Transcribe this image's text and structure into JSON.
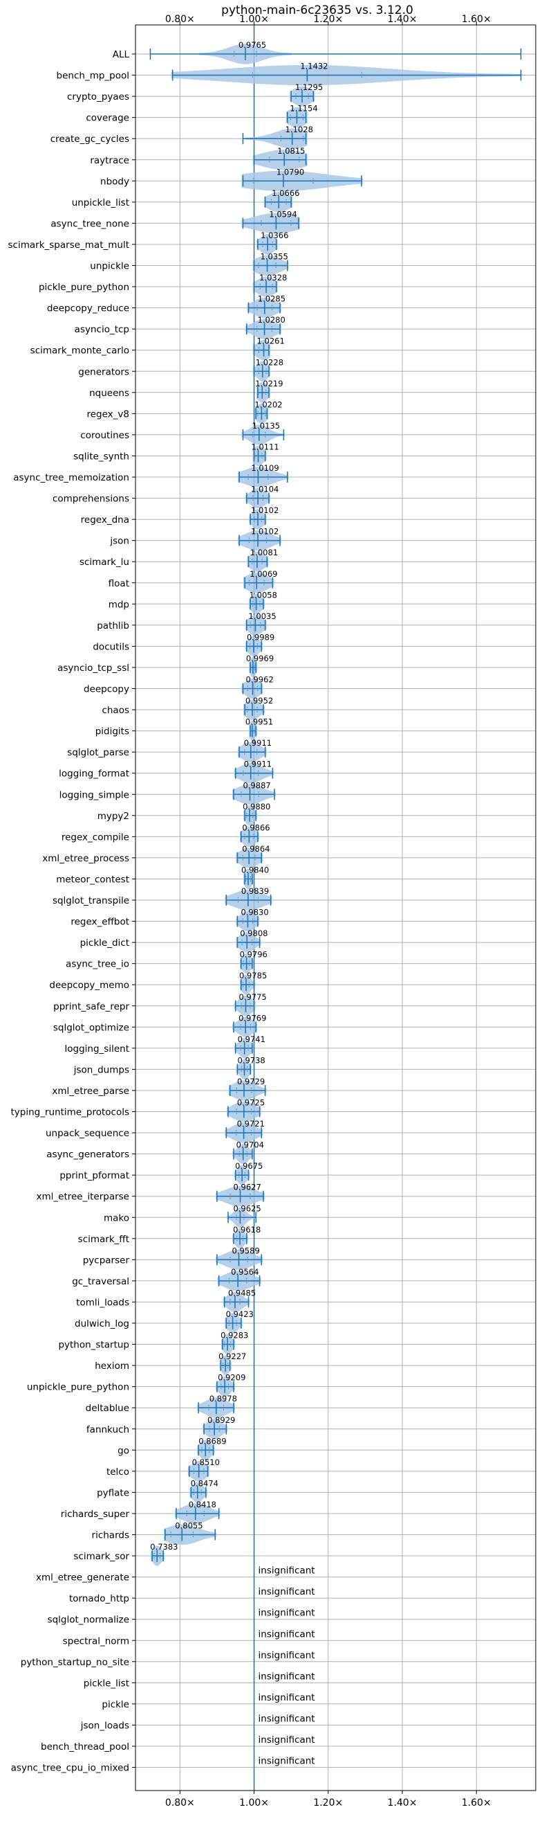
{
  "chart_data": {
    "type": "violin",
    "title": "python-main-6c23635 vs. 3.12.0",
    "xlabel": "",
    "ylabel": "",
    "xlim": [
      0.68,
      1.76
    ],
    "xticks": [
      0.8,
      1.0,
      1.2,
      1.4,
      1.6
    ],
    "xtick_labels": [
      "0.80×",
      "1.00×",
      "1.20×",
      "1.40×",
      "1.60×"
    ],
    "reference_line": 1.0,
    "grid": true,
    "colors": {
      "violin": "#a9c8e6",
      "line": "#1f77b4",
      "grid": "#b0b0b0"
    },
    "benchmarks": [
      {
        "name": "ALL",
        "label": "0.9765",
        "mean": 0.9765,
        "min": 0.72,
        "max": 1.72,
        "spread": 0.045
      },
      {
        "name": "bench_mp_pool",
        "label": "1.1432",
        "mean": 1.1432,
        "min": 0.78,
        "max": 1.72,
        "spread": 0.22
      },
      {
        "name": "crypto_pyaes",
        "label": "1.1295",
        "mean": 1.1295,
        "min": 1.1,
        "max": 1.16,
        "spread": 0.025
      },
      {
        "name": "coverage",
        "label": "1.1154",
        "mean": 1.1154,
        "min": 1.09,
        "max": 1.14,
        "spread": 0.025
      },
      {
        "name": "create_gc_cycles",
        "label": "1.1028",
        "mean": 1.1028,
        "min": 0.97,
        "max": 1.14,
        "spread": 0.045
      },
      {
        "name": "raytrace",
        "label": "1.0815",
        "mean": 1.0815,
        "min": 1.0,
        "max": 1.14,
        "spread": 0.06
      },
      {
        "name": "nbody",
        "label": "1.0790",
        "mean": 1.079,
        "min": 0.97,
        "max": 1.29,
        "spread": 0.12
      },
      {
        "name": "unpickle_list",
        "label": "1.0666",
        "mean": 1.0666,
        "min": 1.03,
        "max": 1.1,
        "spread": 0.03
      },
      {
        "name": "async_tree_none",
        "label": "1.0594",
        "mean": 1.0594,
        "min": 0.97,
        "max": 1.12,
        "spread": 0.06
      },
      {
        "name": "scimark_sparse_mat_mult",
        "label": "1.0366",
        "mean": 1.0366,
        "min": 1.01,
        "max": 1.06,
        "spread": 0.02
      },
      {
        "name": "unpickle",
        "label": "1.0355",
        "mean": 1.0355,
        "min": 1.0,
        "max": 1.09,
        "spread": 0.035
      },
      {
        "name": "pickle_pure_python",
        "label": "1.0328",
        "mean": 1.0328,
        "min": 1.0,
        "max": 1.06,
        "spread": 0.025
      },
      {
        "name": "deepcopy_reduce",
        "label": "1.0285",
        "mean": 1.0285,
        "min": 0.985,
        "max": 1.07,
        "spread": 0.03
      },
      {
        "name": "asyncio_tcp",
        "label": "1.0280",
        "mean": 1.028,
        "min": 0.98,
        "max": 1.07,
        "spread": 0.03
      },
      {
        "name": "scimark_monte_carlo",
        "label": "1.0261",
        "mean": 1.0261,
        "min": 1.0,
        "max": 1.04,
        "spread": 0.02
      },
      {
        "name": "generators",
        "label": "1.0228",
        "mean": 1.0228,
        "min": 1.0,
        "max": 1.04,
        "spread": 0.015
      },
      {
        "name": "nqueens",
        "label": "1.0219",
        "mean": 1.0219,
        "min": 1.01,
        "max": 1.04,
        "spread": 0.015
      },
      {
        "name": "regex_v8",
        "label": "1.0202",
        "mean": 1.0202,
        "min": 1.005,
        "max": 1.035,
        "spread": 0.015
      },
      {
        "name": "coroutines",
        "label": "1.0135",
        "mean": 1.0135,
        "min": 0.97,
        "max": 1.08,
        "spread": 0.025
      },
      {
        "name": "sqlite_synth",
        "label": "1.0111",
        "mean": 1.0111,
        "min": 1.0,
        "max": 1.03,
        "spread": 0.015
      },
      {
        "name": "async_tree_memoization",
        "label": "1.0109",
        "mean": 1.0109,
        "min": 0.96,
        "max": 1.09,
        "spread": 0.04
      },
      {
        "name": "comprehensions",
        "label": "1.0104",
        "mean": 1.0104,
        "min": 0.98,
        "max": 1.04,
        "spread": 0.02
      },
      {
        "name": "regex_dna",
        "label": "1.0102",
        "mean": 1.0102,
        "min": 0.99,
        "max": 1.03,
        "spread": 0.015
      },
      {
        "name": "json",
        "label": "1.0102",
        "mean": 1.0102,
        "min": 0.96,
        "max": 1.07,
        "spread": 0.035
      },
      {
        "name": "scimark_lu",
        "label": "1.0081",
        "mean": 1.0081,
        "min": 0.985,
        "max": 1.035,
        "spread": 0.02
      },
      {
        "name": "float",
        "label": "1.0069",
        "mean": 1.0069,
        "min": 0.975,
        "max": 1.05,
        "spread": 0.03
      },
      {
        "name": "mdp",
        "label": "1.0058",
        "mean": 1.0058,
        "min": 0.99,
        "max": 1.025,
        "spread": 0.015
      },
      {
        "name": "pathlib",
        "label": "1.0035",
        "mean": 1.0035,
        "min": 0.98,
        "max": 1.03,
        "spread": 0.02
      },
      {
        "name": "docutils",
        "label": "0.9989",
        "mean": 0.9989,
        "min": 0.98,
        "max": 1.02,
        "spread": 0.015
      },
      {
        "name": "asyncio_tcp_ssl",
        "label": "0.9969",
        "mean": 0.9969,
        "min": 0.99,
        "max": 1.005,
        "spread": 0.008
      },
      {
        "name": "deepcopy",
        "label": "0.9962",
        "mean": 0.9962,
        "min": 0.97,
        "max": 1.02,
        "spread": 0.02
      },
      {
        "name": "chaos",
        "label": "0.9952",
        "mean": 0.9952,
        "min": 0.975,
        "max": 1.025,
        "spread": 0.02
      },
      {
        "name": "pidigits",
        "label": "0.9951",
        "mean": 0.9951,
        "min": 0.99,
        "max": 1.005,
        "spread": 0.008
      },
      {
        "name": "sqlglot_parse",
        "label": "0.9911",
        "mean": 0.9911,
        "min": 0.96,
        "max": 1.03,
        "spread": 0.025
      },
      {
        "name": "logging_format",
        "label": "0.9911",
        "mean": 0.9911,
        "min": 0.95,
        "max": 1.05,
        "spread": 0.03
      },
      {
        "name": "logging_simple",
        "label": "0.9887",
        "mean": 0.9887,
        "min": 0.945,
        "max": 1.055,
        "spread": 0.035
      },
      {
        "name": "mypy2",
        "label": "0.9880",
        "mean": 0.988,
        "min": 0.975,
        "max": 1.005,
        "spread": 0.012
      },
      {
        "name": "regex_compile",
        "label": "0.9866",
        "mean": 0.9866,
        "min": 0.965,
        "max": 1.01,
        "spread": 0.018
      },
      {
        "name": "xml_etree_process",
        "label": "0.9864",
        "mean": 0.9864,
        "min": 0.955,
        "max": 1.02,
        "spread": 0.025
      },
      {
        "name": "meteor_contest",
        "label": "0.9840",
        "mean": 0.984,
        "min": 0.975,
        "max": 0.995,
        "spread": 0.01
      },
      {
        "name": "sqlglot_transpile",
        "label": "0.9839",
        "mean": 0.9839,
        "min": 0.925,
        "max": 1.045,
        "spread": 0.04
      },
      {
        "name": "regex_effbot",
        "label": "0.9830",
        "mean": 0.983,
        "min": 0.955,
        "max": 1.01,
        "spread": 0.02
      },
      {
        "name": "pickle_dict",
        "label": "0.9808",
        "mean": 0.9808,
        "min": 0.955,
        "max": 1.015,
        "spread": 0.02
      },
      {
        "name": "async_tree_io",
        "label": "0.9796",
        "mean": 0.9796,
        "min": 0.965,
        "max": 0.995,
        "spread": 0.012
      },
      {
        "name": "deepcopy_memo",
        "label": "0.9785",
        "mean": 0.9785,
        "min": 0.965,
        "max": 1.0,
        "spread": 0.012
      },
      {
        "name": "pprint_safe_repr",
        "label": "0.9775",
        "mean": 0.9775,
        "min": 0.95,
        "max": 1.0,
        "spread": 0.018
      },
      {
        "name": "sqlglot_optimize",
        "label": "0.9769",
        "mean": 0.9769,
        "min": 0.945,
        "max": 1.005,
        "spread": 0.02
      },
      {
        "name": "logging_silent",
        "label": "0.9741",
        "mean": 0.9741,
        "min": 0.95,
        "max": 0.995,
        "spread": 0.015
      },
      {
        "name": "json_dumps",
        "label": "0.9738",
        "mean": 0.9738,
        "min": 0.955,
        "max": 0.99,
        "spread": 0.012
      },
      {
        "name": "xml_etree_parse",
        "label": "0.9729",
        "mean": 0.9729,
        "min": 0.935,
        "max": 1.03,
        "spread": 0.03
      },
      {
        "name": "typing_runtime_protocols",
        "label": "0.9725",
        "mean": 0.9725,
        "min": 0.93,
        "max": 1.015,
        "spread": 0.03
      },
      {
        "name": "unpack_sequence",
        "label": "0.9721",
        "mean": 0.9721,
        "min": 0.925,
        "max": 1.02,
        "spread": 0.03
      },
      {
        "name": "async_generators",
        "label": "0.9704",
        "mean": 0.9704,
        "min": 0.945,
        "max": 0.995,
        "spread": 0.015
      },
      {
        "name": "pprint_pformat",
        "label": "0.9675",
        "mean": 0.9675,
        "min": 0.95,
        "max": 0.985,
        "spread": 0.012
      },
      {
        "name": "xml_etree_iterparse",
        "label": "0.9627",
        "mean": 0.9627,
        "min": 0.9,
        "max": 1.025,
        "spread": 0.04
      },
      {
        "name": "mako",
        "label": "0.9625",
        "mean": 0.9625,
        "min": 0.93,
        "max": 1.005,
        "spread": 0.015
      },
      {
        "name": "scimark_fft",
        "label": "0.9618",
        "mean": 0.9618,
        "min": 0.945,
        "max": 0.98,
        "spread": 0.012
      },
      {
        "name": "pycparser",
        "label": "0.9589",
        "mean": 0.9589,
        "min": 0.9,
        "max": 1.02,
        "spread": 0.035
      },
      {
        "name": "gc_traversal",
        "label": "0.9564",
        "mean": 0.9564,
        "min": 0.905,
        "max": 1.015,
        "spread": 0.035
      },
      {
        "name": "tomli_loads",
        "label": "0.9485",
        "mean": 0.9485,
        "min": 0.92,
        "max": 0.985,
        "spread": 0.02
      },
      {
        "name": "dulwich_log",
        "label": "0.9423",
        "mean": 0.9423,
        "min": 0.925,
        "max": 0.965,
        "spread": 0.015
      },
      {
        "name": "python_startup",
        "label": "0.9283",
        "mean": 0.9283,
        "min": 0.915,
        "max": 0.945,
        "spread": 0.012
      },
      {
        "name": "hexiom",
        "label": "0.9227",
        "mean": 0.9227,
        "min": 0.91,
        "max": 0.935,
        "spread": 0.01
      },
      {
        "name": "unpickle_pure_python",
        "label": "0.9209",
        "mean": 0.9209,
        "min": 0.9,
        "max": 0.945,
        "spread": 0.015
      },
      {
        "name": "deltablue",
        "label": "0.8978",
        "mean": 0.8978,
        "min": 0.85,
        "max": 0.945,
        "spread": 0.03
      },
      {
        "name": "fannkuch",
        "label": "0.8929",
        "mean": 0.8929,
        "min": 0.865,
        "max": 0.925,
        "spread": 0.02
      },
      {
        "name": "go",
        "label": "0.8689",
        "mean": 0.8689,
        "min": 0.85,
        "max": 0.89,
        "spread": 0.015
      },
      {
        "name": "telco",
        "label": "0.8510",
        "mean": 0.851,
        "min": 0.825,
        "max": 0.875,
        "spread": 0.02
      },
      {
        "name": "pyflate",
        "label": "0.8474",
        "mean": 0.8474,
        "min": 0.83,
        "max": 0.87,
        "spread": 0.015
      },
      {
        "name": "richards_super",
        "label": "0.8418",
        "mean": 0.8418,
        "min": 0.79,
        "max": 0.905,
        "spread": 0.035
      },
      {
        "name": "richards",
        "label": "0.8055",
        "mean": 0.8055,
        "min": 0.76,
        "max": 0.895,
        "spread": 0.045
      },
      {
        "name": "scimark_sor",
        "label": "0.7383",
        "mean": 0.7383,
        "min": 0.725,
        "max": 0.755,
        "spread": 0.012
      },
      {
        "name": "xml_etree_generate",
        "label": "insignificant"
      },
      {
        "name": "tornado_http",
        "label": "insignificant"
      },
      {
        "name": "sqlglot_normalize",
        "label": "insignificant"
      },
      {
        "name": "spectral_norm",
        "label": "insignificant"
      },
      {
        "name": "python_startup_no_site",
        "label": "insignificant"
      },
      {
        "name": "pickle_list",
        "label": "insignificant"
      },
      {
        "name": "pickle",
        "label": "insignificant"
      },
      {
        "name": "json_loads",
        "label": "insignificant"
      },
      {
        "name": "bench_thread_pool",
        "label": "insignificant"
      },
      {
        "name": "async_tree_cpu_io_mixed",
        "label": "insignificant"
      }
    ]
  }
}
